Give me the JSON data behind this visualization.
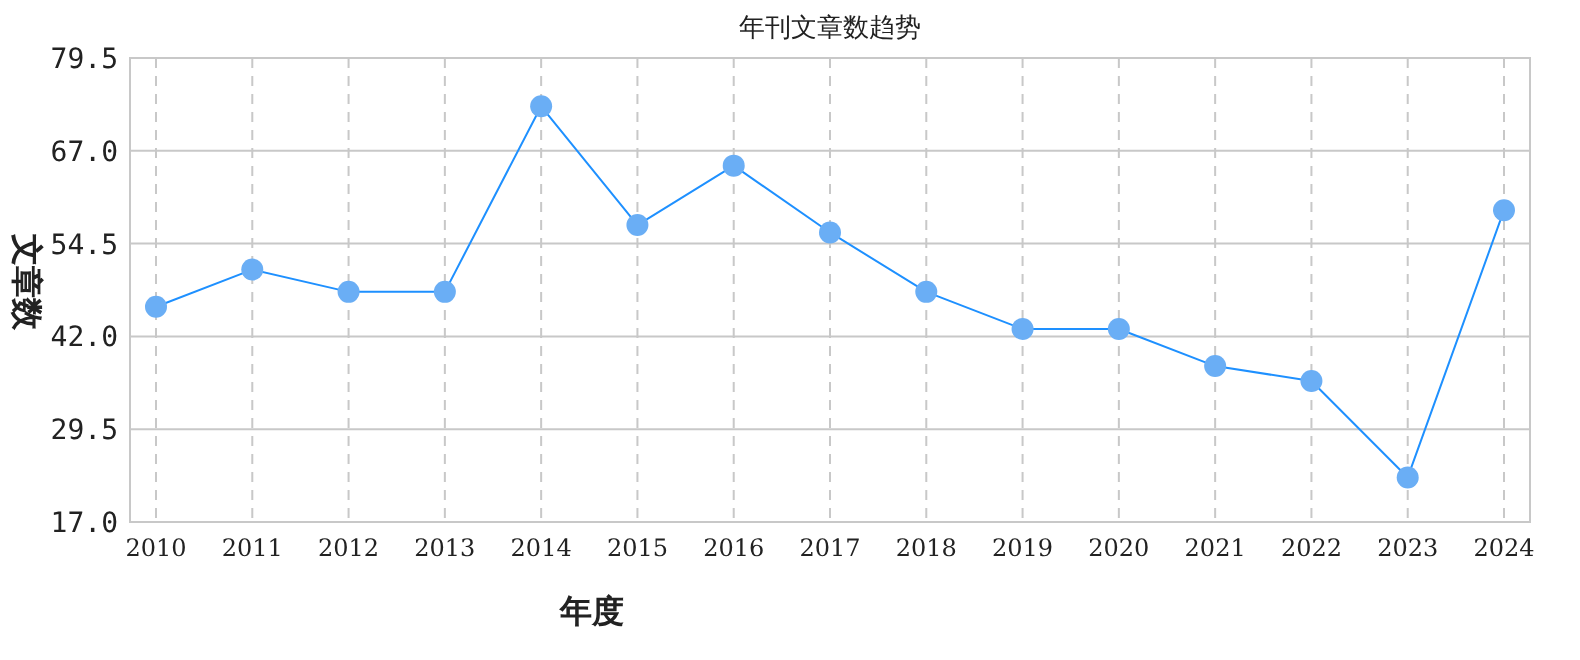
{
  "chart_data": {
    "type": "line",
    "title": "年刊文章数趋势",
    "xlabel": "年度",
    "ylabel": "文章数",
    "categories": [
      "2010",
      "2011",
      "2012",
      "2013",
      "2014",
      "2015",
      "2016",
      "2017",
      "2018",
      "2019",
      "2020",
      "2021",
      "2022",
      "2023",
      "2024"
    ],
    "series": [
      {
        "color": "#1e90ff",
        "values": [
          46,
          51,
          48,
          48,
          73,
          57,
          65,
          56,
          48,
          43,
          43,
          38,
          36,
          23,
          59
        ]
      }
    ],
    "ylim": [
      17,
      79.5
    ],
    "yticks": [
      {
        "value": 17,
        "label": "17.0"
      },
      29.5,
      {
        "value": 42,
        "label": "42.0"
      },
      54.5,
      {
        "value": 67,
        "label": "67.0"
      },
      79.5
    ],
    "grid": true,
    "marker": "circle",
    "line_style": "solid"
  }
}
